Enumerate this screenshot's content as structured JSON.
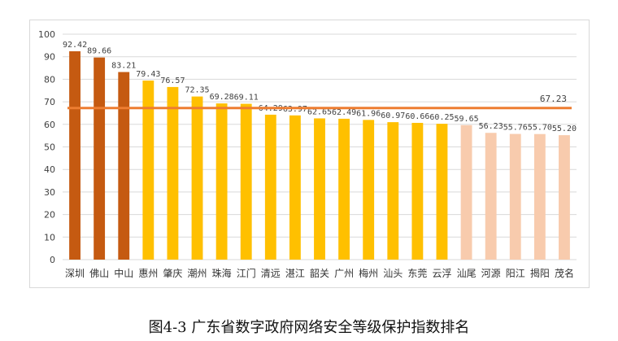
{
  "caption": "图4-3  广东省数字政府网络安全等级保护指数排名",
  "top_fragment": "",
  "chart_data": {
    "type": "bar",
    "title": "",
    "xlabel": "",
    "ylabel": "",
    "ylim": [
      0,
      100
    ],
    "y_ticks": [
      0,
      10,
      20,
      30,
      40,
      50,
      60,
      70,
      80,
      90,
      100
    ],
    "grid": true,
    "categories": [
      "深圳",
      "佛山",
      "中山",
      "惠州",
      "肇庆",
      "潮州",
      "珠海",
      "江门",
      "清远",
      "湛江",
      "韶关",
      "广州",
      "梅州",
      "汕头",
      "东莞",
      "云浮",
      "汕尾",
      "河源",
      "阳江",
      "揭阳",
      "茂名"
    ],
    "values": [
      92.42,
      89.66,
      83.21,
      79.43,
      76.57,
      72.35,
      69.28,
      69.11,
      64.29,
      63.97,
      62.65,
      62.49,
      61.96,
      60.97,
      60.66,
      60.25,
      59.65,
      56.23,
      55.76,
      55.7,
      55.2
    ],
    "value_labels": [
      "92.42",
      "89.66",
      "83.21",
      "79.43",
      "76.57",
      "72.35",
      "69.28",
      "69.11",
      "64.29",
      "63.97",
      "62.65",
      "62.49",
      "61.96",
      "60.97",
      "60.66",
      "60.25",
      "59.65",
      "56.23",
      "55.76",
      "55.70",
      "55.20"
    ],
    "bar_colors": [
      "#c55a11",
      "#c55a11",
      "#c55a11",
      "#ffc000",
      "#ffc000",
      "#ffc000",
      "#ffc000",
      "#ffc000",
      "#ffc000",
      "#ffc000",
      "#ffc000",
      "#ffc000",
      "#ffc000",
      "#ffc000",
      "#ffc000",
      "#ffc000",
      "#f8cbad",
      "#f8cbad",
      "#f8cbad",
      "#f8cbad",
      "#f8cbad"
    ],
    "average_line": {
      "value": 67.23,
      "label": "67.23",
      "color": "#ed7d31"
    },
    "grid_color": "#d9d9d9",
    "label_color": "#404040"
  }
}
